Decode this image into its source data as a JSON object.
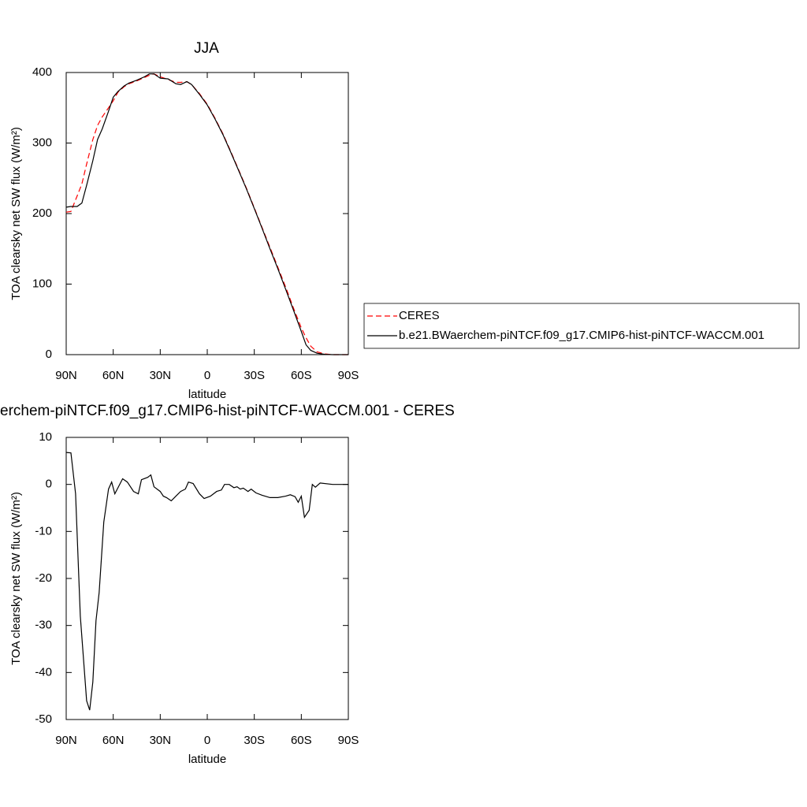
{
  "chart_data": [
    {
      "type": "line",
      "title": "JJA",
      "xlabel": "latitude",
      "ylabel": "TOA clearsky net SW flux (W/m²)",
      "x": [
        90,
        87,
        83,
        80,
        77,
        73,
        70,
        67,
        63,
        60,
        57,
        53,
        50,
        45,
        40,
        37,
        34,
        30,
        25,
        20,
        17,
        13,
        10,
        5,
        0,
        -5,
        -10,
        -15,
        -20,
        -25,
        -30,
        -35,
        -40,
        -45,
        -50,
        -55,
        -60,
        -63,
        -66,
        -70,
        -75,
        -80,
        -85,
        -90
      ],
      "series": [
        {
          "name": "CERES",
          "color": "#ff0000",
          "linestyle": "dashed",
          "values": [
            202,
            203,
            225,
            242,
            270,
            305,
            325,
            337,
            350,
            360,
            372,
            380,
            384,
            388,
            393,
            396,
            398,
            394,
            390,
            386,
            386,
            387,
            383,
            370,
            355,
            335,
            313,
            288,
            262,
            236,
            208,
            180,
            152,
            124,
            96,
            66,
            38,
            24,
            12,
            4,
            1,
            0,
            0,
            0
          ]
        },
        {
          "name": "b.e21.BWaerchem-piNTCF.f09_g17.CMIP6-hist-piNTCF-WACCM.001",
          "color": "#000000",
          "linestyle": "solid",
          "values": [
            209,
            210,
            210,
            215,
            240,
            275,
            305,
            320,
            345,
            365,
            373,
            381,
            385,
            389,
            394,
            398,
            398,
            392,
            391,
            384,
            383,
            387,
            383,
            369,
            354,
            334,
            312,
            287,
            261,
            235,
            207,
            179,
            150,
            122,
            93,
            63,
            33,
            14,
            6,
            2,
            0.5,
            0,
            0,
            0
          ]
        }
      ],
      "xlim": [
        90,
        -90
      ],
      "xticks": [
        {
          "value": 90,
          "label": "90N"
        },
        {
          "value": 60,
          "label": "60N"
        },
        {
          "value": 30,
          "label": "30N"
        },
        0,
        {
          "value": -30,
          "label": "30S"
        },
        {
          "value": -60,
          "label": "60S"
        },
        {
          "value": -90,
          "label": "90S"
        }
      ],
      "ylim": [
        0,
        400
      ],
      "yticks": [
        0,
        100,
        200,
        300,
        400
      ],
      "legend": "right"
    },
    {
      "type": "line",
      "title": "erchem-piNTCF.f09_g17.CMIP6-hist-piNTCF-WACCM.001 - CERES",
      "xlabel": "latitude",
      "ylabel": "TOA clearsky net SW flux (W/m²)",
      "x": [
        90,
        87,
        84,
        81,
        77,
        75,
        73,
        71,
        69,
        66,
        63,
        61,
        59,
        54,
        51,
        47,
        44,
        42,
        38,
        36,
        34,
        30,
        28,
        26,
        23,
        20,
        17,
        14,
        12,
        9,
        5,
        2,
        -2,
        -6,
        -9,
        -11,
        -14,
        -17,
        -19,
        -21,
        -23,
        -26,
        -28,
        -31,
        -35,
        -40,
        -45,
        -50,
        -53,
        -56,
        -58,
        -60,
        -62,
        -65,
        -67,
        -69,
        -72,
        -80,
        -90
      ],
      "color": "#000000",
      "values": [
        6.8,
        6.7,
        -2,
        -28,
        -46,
        -48,
        -42,
        -29,
        -23,
        -8,
        -1,
        0.5,
        -2,
        1.2,
        0.5,
        -1.5,
        -2,
        1,
        1.5,
        2,
        -0.5,
        -1.5,
        -2.5,
        -2.8,
        -3.5,
        -2.5,
        -1.5,
        -1,
        0.5,
        0.2,
        -2,
        -3,
        -2.5,
        -1.5,
        -1.2,
        0,
        0,
        -0.7,
        -0.5,
        -1,
        -0.8,
        -1.5,
        -1,
        -1.8,
        -2.3,
        -2.8,
        -2.8,
        -2.5,
        -2.2,
        -2.6,
        -3.8,
        -2.5,
        -7,
        -5.5,
        0,
        -0.6,
        0.3,
        0,
        0
      ],
      "xlim": [
        90,
        -90
      ],
      "xticks": [
        {
          "value": 90,
          "label": "90N"
        },
        {
          "value": 60,
          "label": "60N"
        },
        {
          "value": 30,
          "label": "30N"
        },
        0,
        {
          "value": -30,
          "label": "30S"
        },
        {
          "value": -60,
          "label": "60S"
        },
        {
          "value": -90,
          "label": "90S"
        }
      ],
      "ylim": [
        -50,
        10
      ],
      "yticks": [
        -50,
        -40,
        -30,
        -20,
        -10,
        0,
        10
      ]
    }
  ]
}
